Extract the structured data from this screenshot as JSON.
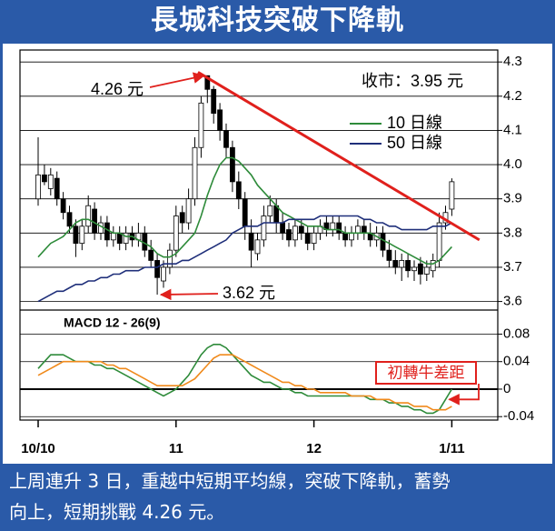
{
  "header": {
    "title": "長城科技突破下降軌"
  },
  "caption": {
    "lines": [
      "上周連升 3 日，重越中短期平均線，突破下降軌，蓄勢",
      "向上，短期挑戰 4.26 元。"
    ]
  },
  "chart_data": [
    {
      "type": "candlestick",
      "close_label": "收市：3.95 元",
      "categories": [
        "10/10",
        null,
        null,
        null,
        null,
        null,
        null,
        null,
        null,
        null,
        null,
        null,
        null,
        null,
        null,
        null,
        null,
        null,
        null,
        null,
        null,
        null,
        "11",
        null,
        null,
        null,
        null,
        null,
        null,
        null,
        null,
        null,
        null,
        null,
        null,
        null,
        null,
        null,
        null,
        null,
        null,
        null,
        null,
        null,
        "12",
        null,
        null,
        null,
        null,
        null,
        null,
        null,
        null,
        null,
        null,
        null,
        null,
        null,
        null,
        null,
        null,
        null,
        null,
        null,
        null,
        null,
        "1/11"
      ],
      "open": [
        3.9,
        3.97,
        3.93,
        3.96,
        3.9,
        3.86,
        3.82,
        3.77,
        3.82,
        3.87,
        3.8,
        3.83,
        3.78,
        3.8,
        3.77,
        3.8,
        3.78,
        3.8,
        3.75,
        3.72,
        3.66,
        3.7,
        3.75,
        3.86,
        3.83,
        3.9,
        4.05,
        4.26,
        4.22,
        4.16,
        4.1,
        4.05,
        3.95,
        3.9,
        3.8,
        3.74,
        3.78,
        3.85,
        3.88,
        3.83,
        3.81,
        3.78,
        3.82,
        3.8,
        3.77,
        3.8,
        3.83,
        3.81,
        3.83,
        3.8,
        3.78,
        3.8,
        3.82,
        3.8,
        3.78,
        3.8,
        3.75,
        3.72,
        3.7,
        3.72,
        3.69,
        3.71,
        3.68,
        3.69,
        3.72,
        3.83,
        3.87
      ],
      "high": [
        4.08,
        4.0,
        3.99,
        3.98,
        3.92,
        3.88,
        3.84,
        3.84,
        3.91,
        3.89,
        3.85,
        3.85,
        3.82,
        3.82,
        3.82,
        3.82,
        3.83,
        3.82,
        3.78,
        3.74,
        3.72,
        3.77,
        3.88,
        3.88,
        3.93,
        4.08,
        4.2,
        4.26,
        4.23,
        4.18,
        4.12,
        4.07,
        3.98,
        3.92,
        3.84,
        3.8,
        3.88,
        3.91,
        3.9,
        3.86,
        3.83,
        3.84,
        3.84,
        3.82,
        3.82,
        3.84,
        3.85,
        3.85,
        3.85,
        3.82,
        3.82,
        3.84,
        3.84,
        3.83,
        3.82,
        3.82,
        3.78,
        3.75,
        3.74,
        3.74,
        3.72,
        3.73,
        3.72,
        3.74,
        3.86,
        3.88,
        3.96
      ],
      "low": [
        3.88,
        3.94,
        3.91,
        3.88,
        3.84,
        3.8,
        3.73,
        3.75,
        3.8,
        3.78,
        3.78,
        3.76,
        3.76,
        3.75,
        3.75,
        3.76,
        3.76,
        3.73,
        3.7,
        3.62,
        3.64,
        3.68,
        3.73,
        3.8,
        3.81,
        3.88,
        4.02,
        4.18,
        4.12,
        4.07,
        4.02,
        3.92,
        3.87,
        3.78,
        3.7,
        3.72,
        3.76,
        3.83,
        3.8,
        3.78,
        3.76,
        3.76,
        3.78,
        3.75,
        3.75,
        3.78,
        3.79,
        3.79,
        3.78,
        3.76,
        3.76,
        3.78,
        3.78,
        3.76,
        3.76,
        3.73,
        3.7,
        3.68,
        3.66,
        3.67,
        3.66,
        3.65,
        3.66,
        3.67,
        3.7,
        3.81,
        3.85
      ],
      "close": [
        3.97,
        3.95,
        3.97,
        3.9,
        3.86,
        3.82,
        3.77,
        3.82,
        3.88,
        3.8,
        3.83,
        3.78,
        3.8,
        3.77,
        3.8,
        3.78,
        3.8,
        3.75,
        3.72,
        3.67,
        3.7,
        3.75,
        3.85,
        3.83,
        3.9,
        4.05,
        4.18,
        4.22,
        4.15,
        4.1,
        4.05,
        3.95,
        3.9,
        3.82,
        3.75,
        3.78,
        3.85,
        3.88,
        3.83,
        3.8,
        3.78,
        3.82,
        3.8,
        3.77,
        3.8,
        3.82,
        3.81,
        3.83,
        3.8,
        3.78,
        3.8,
        3.82,
        3.8,
        3.78,
        3.8,
        3.75,
        3.72,
        3.7,
        3.72,
        3.69,
        3.7,
        3.68,
        3.7,
        3.72,
        3.83,
        3.86,
        3.95
      ],
      "candle_colors": {
        "up": "#ffffff",
        "down": "#000000"
      },
      "series": [
        {
          "name": "10 日線",
          "color": "#2e8b3a",
          "values": [
            3.73,
            3.75,
            3.77,
            3.78,
            3.79,
            3.81,
            3.83,
            3.84,
            3.84,
            3.83,
            3.82,
            3.81,
            3.8,
            3.8,
            3.79,
            3.79,
            3.78,
            3.77,
            3.76,
            3.74,
            3.73,
            3.73,
            3.74,
            3.76,
            3.78,
            3.8,
            3.85,
            3.91,
            3.96,
            4.0,
            4.02,
            4.02,
            4.01,
            3.99,
            3.97,
            3.94,
            3.92,
            3.9,
            3.88,
            3.86,
            3.85,
            3.84,
            3.83,
            3.82,
            3.82,
            3.82,
            3.81,
            3.81,
            3.81,
            3.8,
            3.8,
            3.8,
            3.8,
            3.8,
            3.79,
            3.78,
            3.77,
            3.76,
            3.75,
            3.74,
            3.73,
            3.72,
            3.71,
            3.71,
            3.72,
            3.74,
            3.76
          ]
        },
        {
          "name": "50 日線",
          "color": "#1f2f7a",
          "values": [
            3.6,
            3.61,
            3.62,
            3.63,
            3.63,
            3.64,
            3.65,
            3.65,
            3.66,
            3.66,
            3.67,
            3.67,
            3.68,
            3.68,
            3.69,
            3.69,
            3.69,
            3.7,
            3.7,
            3.7,
            3.71,
            3.71,
            3.71,
            3.72,
            3.72,
            3.73,
            3.74,
            3.75,
            3.76,
            3.77,
            3.78,
            3.8,
            3.81,
            3.82,
            3.82,
            3.82,
            3.83,
            3.83,
            3.83,
            3.83,
            3.84,
            3.84,
            3.84,
            3.84,
            3.84,
            3.85,
            3.85,
            3.85,
            3.85,
            3.85,
            3.85,
            3.85,
            3.84,
            3.84,
            3.83,
            3.83,
            3.82,
            3.82,
            3.81,
            3.81,
            3.81,
            3.81,
            3.81,
            3.82,
            3.82,
            3.82,
            3.83
          ]
        }
      ],
      "trendline": {
        "x": [
          25.5,
          70.4
        ],
        "y": [
          4.27,
          3.78
        ],
        "color": "#e0201c"
      },
      "annotations": [
        {
          "text": "4.26 元",
          "x": 27,
          "y": 4.26
        },
        {
          "text": "3.62 元",
          "x": 19,
          "y": 3.62
        }
      ],
      "ylim": [
        3.575,
        4.335
      ],
      "yticks": [
        3.6,
        3.7,
        3.8,
        3.9,
        {
          "value": 4,
          "label": "4.0"
        },
        4.1,
        4.2,
        4.3
      ],
      "grid": true
    },
    {
      "type": "line",
      "title": "MACD 12 - 26(9)",
      "series": [
        {
          "color": "#2e8b3a",
          "values": [
            0.03,
            0.04,
            0.05,
            0.05,
            0.05,
            0.045,
            0.04,
            0.04,
            0.04,
            0.035,
            0.035,
            0.03,
            0.03,
            0.025,
            0.02,
            0.015,
            0.01,
            0.005,
            0.0,
            -0.005,
            -0.01,
            -0.005,
            0.0,
            0.01,
            0.02,
            0.035,
            0.05,
            0.06,
            0.065,
            0.065,
            0.06,
            0.05,
            0.04,
            0.03,
            0.02,
            0.015,
            0.01,
            0.01,
            0.005,
            0.0,
            0.0,
            -0.005,
            -0.005,
            -0.01,
            -0.01,
            -0.01,
            -0.01,
            -0.01,
            -0.01,
            -0.01,
            -0.01,
            -0.01,
            -0.01,
            -0.015,
            -0.015,
            -0.015,
            -0.02,
            -0.02,
            -0.025,
            -0.025,
            -0.03,
            -0.03,
            -0.035,
            -0.035,
            -0.03,
            -0.015,
            0.0
          ]
        },
        {
          "color": "#f08a1c",
          "values": [
            0.02,
            0.025,
            0.03,
            0.035,
            0.04,
            0.04,
            0.04,
            0.04,
            0.04,
            0.04,
            0.04,
            0.035,
            0.035,
            0.03,
            0.03,
            0.025,
            0.02,
            0.015,
            0.01,
            0.005,
            0.005,
            0.005,
            0.005,
            0.005,
            0.01,
            0.015,
            0.025,
            0.035,
            0.045,
            0.05,
            0.05,
            0.05,
            0.045,
            0.04,
            0.035,
            0.03,
            0.025,
            0.02,
            0.015,
            0.01,
            0.01,
            0.005,
            0.005,
            0.0,
            0.0,
            -0.005,
            -0.005,
            -0.005,
            -0.005,
            -0.005,
            -0.01,
            -0.01,
            -0.01,
            -0.01,
            -0.015,
            -0.015,
            -0.015,
            -0.02,
            -0.02,
            -0.02,
            -0.025,
            -0.025,
            -0.025,
            -0.03,
            -0.03,
            -0.03,
            -0.025
          ]
        }
      ],
      "annotations": [
        {
          "text": "初轉牛差距",
          "x": 65,
          "y": -0.015
        }
      ],
      "ylim": [
        -0.045,
        0.115
      ],
      "yticks": [
        -0.04,
        0,
        0.04,
        0.08
      ],
      "grid": true
    }
  ]
}
